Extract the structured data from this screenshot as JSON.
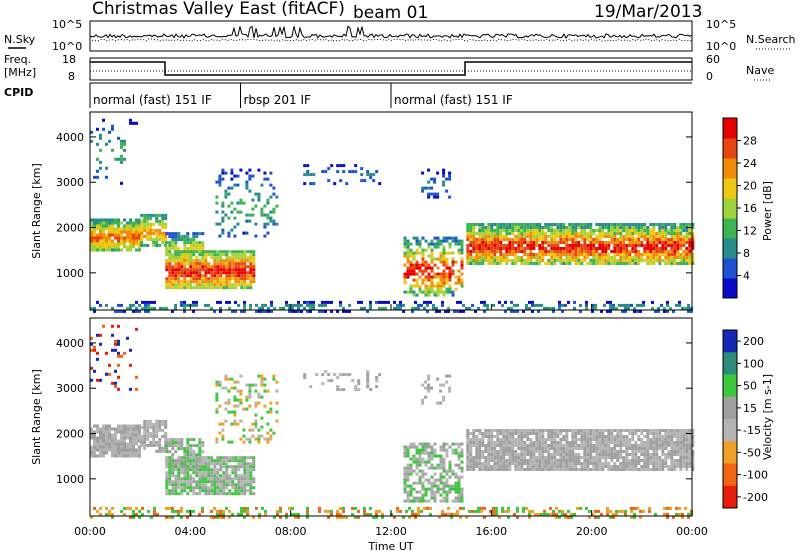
{
  "header": {
    "station": "Christmas Valley East (fitACF)",
    "beam": "beam 01",
    "date": "19/Mar/2013"
  },
  "panels": {
    "nsky_label": "N.Sky",
    "nsky_ticks": [
      "10^5",
      "10^0"
    ],
    "nsearch_label": "N.Search",
    "freq_label_line1": "Freq.",
    "freq_label_line2": "[MHz]",
    "freq_ticks": [
      "18",
      "8"
    ],
    "nave_label": "Nave",
    "nave_ticks": [
      "60",
      "0"
    ],
    "cpid_label": "CPID"
  },
  "cpid_segments": [
    {
      "label": "normal (fast) 151 IF",
      "start_hour": 0,
      "end_hour": 6
    },
    {
      "label": "rbsp 201 IF",
      "start_hour": 6,
      "end_hour": 12
    },
    {
      "label": "normal (fast) 151 IF",
      "start_hour": 12,
      "end_hour": 24
    }
  ],
  "chart_data": [
    {
      "type": "heatmap",
      "name": "power",
      "xlabel": "Time UT",
      "ylabel": "Slant Range [km]",
      "x_ticks": [
        "00:00",
        "04:00",
        "08:00",
        "12:00",
        "16:00",
        "20:00",
        "00:00"
      ],
      "xlim_hours": [
        0,
        24
      ],
      "y_ticks": [
        1000,
        2000,
        3000,
        4000
      ],
      "ylim_km": [
        180,
        4550
      ],
      "colorbar_label": "Power [dB]",
      "colorbar_ticks": [
        4,
        8,
        12,
        16,
        20,
        24,
        28
      ],
      "colorbar_range": [
        0,
        32
      ],
      "colors": [
        "#0a0ac8",
        "#1e50d2",
        "#288c8c",
        "#3cb450",
        "#a0d23c",
        "#f0c814",
        "#f08c0a",
        "#e64614",
        "#e60000"
      ]
    },
    {
      "type": "heatmap",
      "name": "velocity",
      "xlabel": "Time UT",
      "ylabel": "Slant Range [km]",
      "x_ticks": [
        "00:00",
        "04:00",
        "08:00",
        "12:00",
        "16:00",
        "20:00",
        "00:00"
      ],
      "xlim_hours": [
        0,
        24
      ],
      "y_ticks": [
        1000,
        2000,
        3000,
        4000
      ],
      "ylim_km": [
        180,
        4550
      ],
      "colorbar_label": "Velocity [m s-1]",
      "colorbar_ticks": [
        200,
        100,
        50,
        15,
        -15,
        -50,
        -100,
        -200
      ],
      "colors": [
        "#1428b4",
        "#2d8c78",
        "#3cc83c",
        "#a0a0a0",
        "#b4b4b4",
        "#f0a028",
        "#f06414",
        "#e61e0a"
      ]
    }
  ],
  "xaxis": {
    "title": "Time UT"
  }
}
